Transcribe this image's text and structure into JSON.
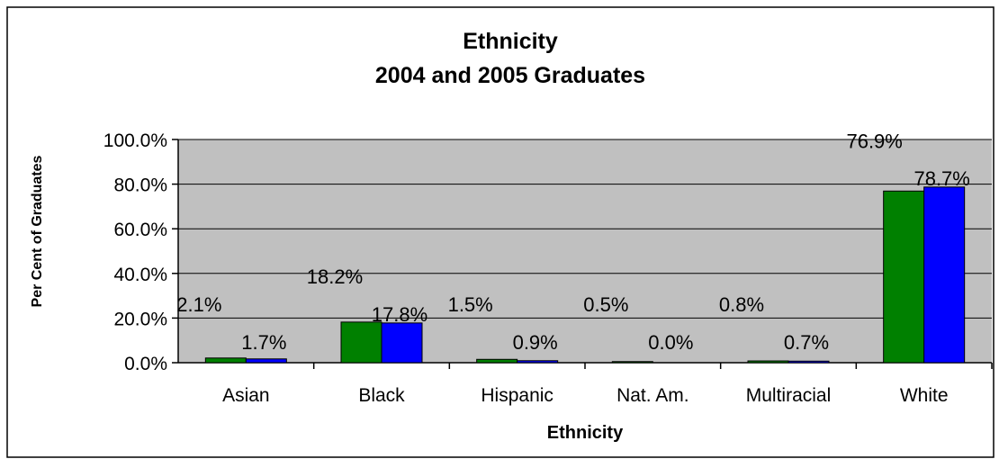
{
  "colors": {
    "series_2004": "#008000",
    "series_2005": "#0000ff",
    "plot_background": "#c0c0c0"
  },
  "chart_data": {
    "type": "bar",
    "title": [
      "Ethnicity",
      "2004 and 2005 Graduates"
    ],
    "xlabel": "Ethnicity",
    "ylabel": "Per Cent of Graduates",
    "ylim": [
      0,
      100
    ],
    "yticks": [
      "0.0%",
      "20.0%",
      "40.0%",
      "60.0%",
      "80.0%",
      "100.0%"
    ],
    "categories": [
      "Asian",
      "Black",
      "Hispanic",
      "Nat. Am.",
      "Multiracial",
      "White"
    ],
    "grid": true,
    "legend": "none",
    "series": [
      {
        "values": [
          2.1,
          18.2,
          1.5,
          0.5,
          0.8,
          76.9
        ],
        "labels": [
          "2.1%",
          "18.2%",
          "1.5%",
          "0.5%",
          "0.8%",
          "76.9%"
        ]
      },
      {
        "values": [
          1.7,
          17.8,
          0.9,
          0.0,
          0.7,
          78.7
        ],
        "labels": [
          "1.7%",
          "17.8%",
          "0.9%",
          "0.0%",
          "0.7%",
          "78.7%"
        ]
      }
    ]
  }
}
